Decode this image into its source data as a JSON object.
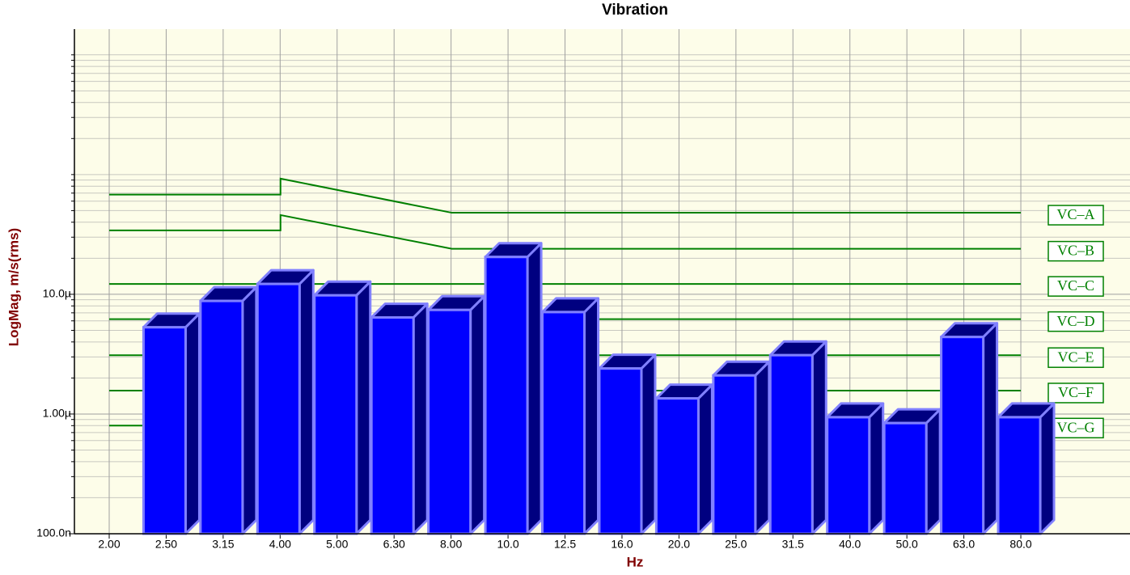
{
  "chart_data": {
    "type": "bar3d",
    "title": "Vibration",
    "xlabel": "Hz",
    "ylabel": "LogMag, m/s(rms)",
    "categories": [
      "2.00",
      "2.50",
      "3.15",
      "4.00",
      "5.00",
      "6.30",
      "8.00",
      "10.0",
      "12.5",
      "16.0",
      "20.0",
      "25.0",
      "31.5",
      "40.0",
      "50.0",
      "63.0",
      "80.0"
    ],
    "values": [
      null,
      5.3e-06,
      8.8e-06,
      1.22e-05,
      9.8e-06,
      6.4e-06,
      7.4e-06,
      2.05e-05,
      7.1e-06,
      2.4e-06,
      1.35e-06,
      2.1e-06,
      3.1e-06,
      9.4e-07,
      8.4e-07,
      4.4e-06,
      9.4e-07
    ],
    "color": "#0000ff",
    "top_color": "#000080",
    "edge_color": "#8080ff",
    "log_y": true,
    "ylim": [
      1e-07,
      0.00164
    ],
    "yticks": [
      {
        "value": 1e-07,
        "label": "100.0n"
      },
      {
        "value": 1e-06,
        "label": "1.00µ"
      },
      {
        "value": 1e-05,
        "label": "10.0µ"
      }
    ],
    "yminorticks": [
      2e-07,
      3e-07,
      4e-07,
      5e-07,
      6e-07,
      7e-07,
      8e-07,
      9e-07,
      2e-06,
      3e-06,
      4e-06,
      5e-06,
      6e-06,
      7e-06,
      8e-06,
      9e-06,
      2e-05,
      3e-05,
      4e-05,
      5e-05,
      6e-05,
      7e-05,
      8e-05,
      9e-05,
      0.0001,
      0.0002,
      0.0003,
      0.0004,
      0.0005,
      0.0006,
      0.0007,
      0.0008,
      0.0009,
      0.001
    ],
    "grid": true,
    "lines": [
      {
        "name": "VC–A",
        "color": "#008000",
        "x": [
          2,
          4,
          4,
          8,
          80
        ],
        "values": [
          6.8e-05,
          6.8e-05,
          9.25e-05,
          4.8e-05,
          4.8e-05
        ]
      },
      {
        "name": "VC–B",
        "color": "#008000",
        "x": [
          2,
          4,
          4,
          8,
          80
        ],
        "values": [
          3.42e-05,
          3.42e-05,
          4.59e-05,
          2.4e-05,
          2.4e-05
        ]
      },
      {
        "name": "VC–C",
        "color": "#008000",
        "x": [
          2,
          80
        ],
        "values": [
          1.22e-05,
          1.22e-05
        ]
      },
      {
        "name": "VC–D",
        "color": "#008000",
        "x": [
          2,
          80
        ],
        "values": [
          6.2e-06,
          6.2e-06
        ]
      },
      {
        "name": "VC–E",
        "color": "#008000",
        "x": [
          2,
          80
        ],
        "values": [
          3.1e-06,
          3.1e-06
        ]
      },
      {
        "name": "VC–F",
        "color": "#008000",
        "x": [
          2,
          80
        ],
        "values": [
          1.57e-06,
          1.57e-06
        ]
      },
      {
        "name": "VC–G",
        "color": "#008000",
        "x": [
          2,
          80
        ],
        "values": [
          8e-07,
          8e-07
        ]
      }
    ]
  }
}
